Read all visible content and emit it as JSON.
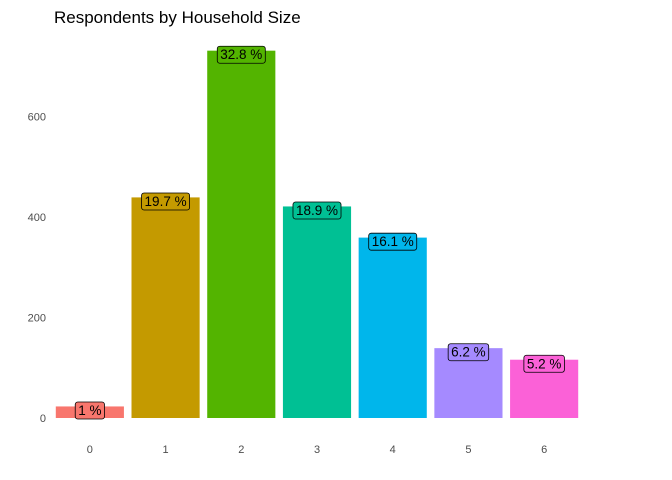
{
  "chart_data": {
    "type": "bar",
    "title": "Respondents by Household Size",
    "xlabel": "",
    "ylabel": "",
    "categories": [
      "0",
      "1",
      "2",
      "3",
      "4",
      "5",
      "6"
    ],
    "values": [
      23,
      439,
      731,
      421,
      359,
      139,
      116
    ],
    "data_labels": [
      "1 %",
      "19.7 %",
      "32.8 %",
      "18.9 %",
      "16.1 %",
      "6.2 %",
      "5.2 %"
    ],
    "colors": [
      "#F8766D",
      "#C49A00",
      "#53B400",
      "#00C094",
      "#00B6EB",
      "#A58AFF",
      "#FB61D7"
    ],
    "yticks": [
      0,
      200,
      400,
      600
    ],
    "ylim": [
      0,
      760
    ],
    "grid": false,
    "legend": "none"
  }
}
